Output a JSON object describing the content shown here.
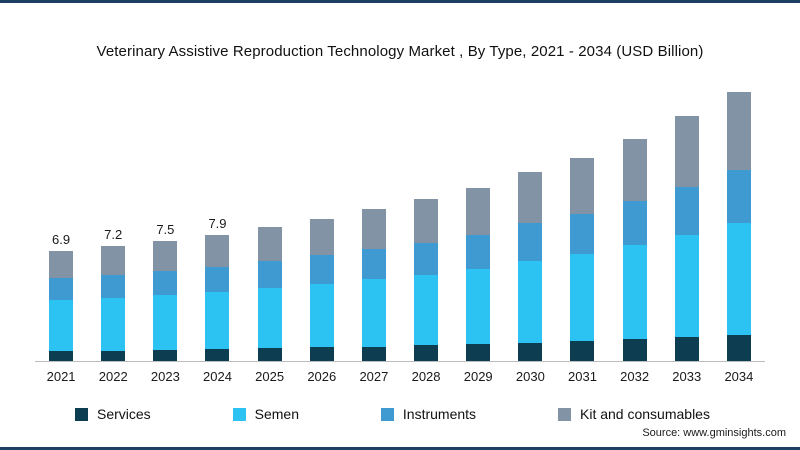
{
  "title": "Veterinary Assistive Reproduction Technology Market , By Type, 2021 - 2034 (USD Billion)",
  "source": "Source: www.gminsights.com",
  "colors": {
    "services": "#0d3d50",
    "semen": "#2cc2f1",
    "instruments": "#3f9ad1",
    "kit": "#8293a6",
    "axis": "#bdbdbd",
    "frame": "#1d3f63"
  },
  "chart_data": {
    "type": "bar",
    "stacked": true,
    "title": "Veterinary Assistive Reproduction Technology Market , By Type, 2021 - 2034 (USD Billion)",
    "xlabel": "",
    "ylabel": "USD Billion",
    "ylim": [
      0,
      17.5
    ],
    "grid": false,
    "legend_position": "bottom",
    "categories": [
      "2021",
      "2022",
      "2023",
      "2024",
      "2025",
      "2026",
      "2027",
      "2028",
      "2029",
      "2030",
      "2031",
      "2032",
      "2033",
      "2034"
    ],
    "series": [
      {
        "name": "Services",
        "color_key": "services",
        "values": [
          0.6,
          0.65,
          0.7,
          0.75,
          0.8,
          0.85,
          0.9,
          1.0,
          1.05,
          1.15,
          1.25,
          1.35,
          1.5,
          1.65
        ]
      },
      {
        "name": "Semen",
        "color_key": "semen",
        "values": [
          3.2,
          3.3,
          3.4,
          3.55,
          3.75,
          3.95,
          4.2,
          4.4,
          4.7,
          5.1,
          5.45,
          5.9,
          6.4,
          7.0
        ]
      },
      {
        "name": "Instruments",
        "color_key": "instruments",
        "values": [
          1.4,
          1.45,
          1.5,
          1.6,
          1.7,
          1.8,
          1.9,
          2.0,
          2.15,
          2.35,
          2.5,
          2.75,
          3.0,
          3.3
        ]
      },
      {
        "name": "Kit and consumables",
        "color_key": "kit",
        "values": [
          1.7,
          1.8,
          1.9,
          2.0,
          2.15,
          2.3,
          2.5,
          2.7,
          2.9,
          3.2,
          3.5,
          3.9,
          4.4,
          4.85
        ]
      }
    ],
    "totals": [
      6.9,
      7.2,
      7.5,
      7.9,
      8.4,
      8.9,
      9.5,
      10.1,
      10.8,
      11.8,
      12.7,
      13.9,
      15.3,
      16.8
    ],
    "data_labels": [
      "6.9",
      "7.2",
      "7.5",
      "7.9"
    ]
  },
  "legend": {
    "items": [
      {
        "label": "Services",
        "color_key": "services"
      },
      {
        "label": "Semen",
        "color_key": "semen"
      },
      {
        "label": "Instruments",
        "color_key": "instruments"
      },
      {
        "label": "Kit and consumables",
        "color_key": "kit"
      }
    ]
  }
}
